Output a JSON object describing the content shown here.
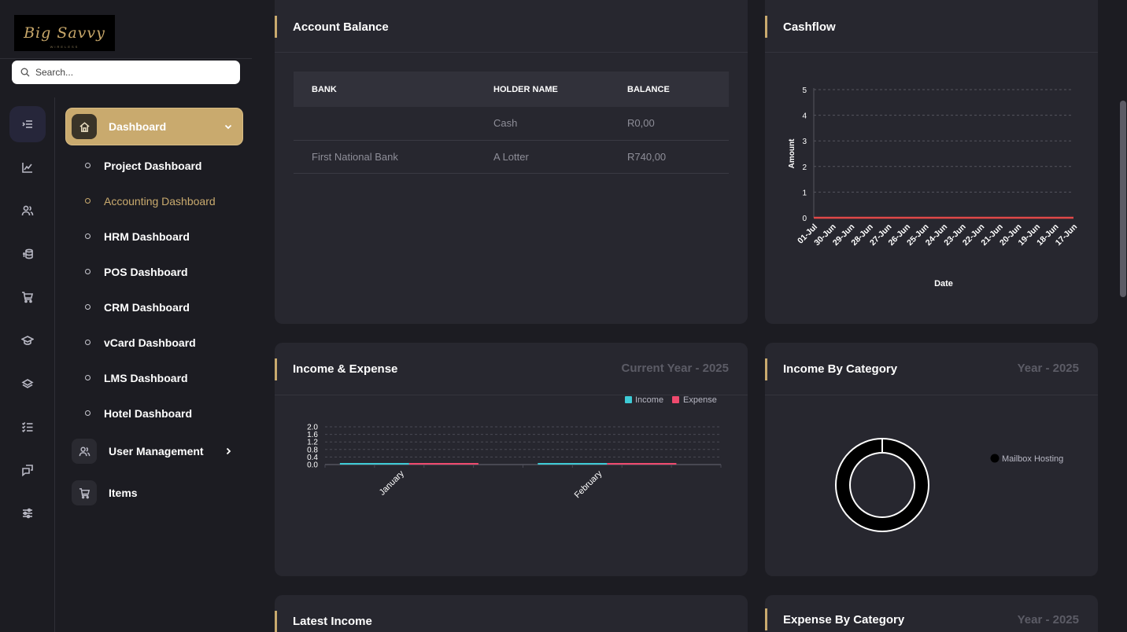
{
  "sidebar": {
    "logo_text": "Big Savvy",
    "logo_subtext": "WIRELESS",
    "search_placeholder": "Search...",
    "rail_icons": [
      "list-icon",
      "chart-icon",
      "users-icon",
      "coins-icon",
      "cart-icon",
      "graduation-cap-icon",
      "layers-icon",
      "checklist-icon",
      "chat-icon",
      "sliders-icon"
    ],
    "nav": {
      "dashboard_label": "Dashboard",
      "sub_items": [
        {
          "label": "Project Dashboard"
        },
        {
          "label": "Accounting Dashboard"
        },
        {
          "label": "HRM Dashboard"
        },
        {
          "label": "POS Dashboard"
        },
        {
          "label": "CRM Dashboard"
        },
        {
          "label": "vCard Dashboard"
        },
        {
          "label": "LMS Dashboard"
        },
        {
          "label": "Hotel Dashboard"
        }
      ],
      "user_management_label": "User Management",
      "items_label": "Items"
    }
  },
  "account_balance": {
    "title": "Account Balance",
    "columns": [
      "BANK",
      "HOLDER NAME",
      "BALANCE"
    ],
    "rows": [
      {
        "bank": "",
        "holder": "Cash",
        "balance": "R0,00"
      },
      {
        "bank": "First National Bank",
        "holder": "A Lotter",
        "balance": "R740,00"
      }
    ]
  },
  "cashflow": {
    "title": "Cashflow"
  },
  "income_expense": {
    "title": "Income & Expense",
    "period": "Current Year - 2025"
  },
  "income_by_category": {
    "title": "Income By Category",
    "period": "Year - 2025"
  },
  "latest_income": {
    "title": "Latest Income"
  },
  "expense_by_category": {
    "title": "Expense By Category",
    "period": "Year - 2025"
  },
  "colors": {
    "accent": "#c9aa6e",
    "income": "#3ecbd6",
    "expense": "#ef4a6e",
    "cashflow_line": "#e04848"
  },
  "chart_data": [
    {
      "type": "line",
      "xlabel": "Date",
      "ylabel": "Amount",
      "x": [
        "01-Jul",
        "30-Jun",
        "29-Jun",
        "28-Jun",
        "27-Jun",
        "26-Jun",
        "25-Jun",
        "24-Jun",
        "23-Jun",
        "22-Jun",
        "21-Jun",
        "20-Jun",
        "19-Jun",
        "18-Jun",
        "17-Jun"
      ],
      "yticks": [
        "0",
        "1",
        "2",
        "3",
        "4",
        "5"
      ],
      "ylim": [
        0,
        5
      ],
      "series": [
        {
          "values": [
            0,
            0,
            0,
            0,
            0,
            0,
            0,
            0,
            0,
            0,
            0,
            0,
            0,
            0,
            0
          ]
        }
      ],
      "grid": true
    },
    {
      "type": "bar",
      "categories": [
        "January",
        "February"
      ],
      "yticks": [
        "0.0",
        "0.4",
        "0.8",
        "1.2",
        "1.6",
        "2.0"
      ],
      "ylim": [
        0,
        2.0
      ],
      "series": [
        {
          "name": "Income",
          "values": [
            0,
            0
          ]
        },
        {
          "name": "Expense",
          "values": [
            0,
            0
          ]
        }
      ],
      "legend": "top-right",
      "grid": true
    },
    {
      "type": "pie",
      "series": [
        {
          "name": "Mailbox Hosting",
          "values": [
            1
          ]
        }
      ],
      "legend": "right"
    }
  ]
}
